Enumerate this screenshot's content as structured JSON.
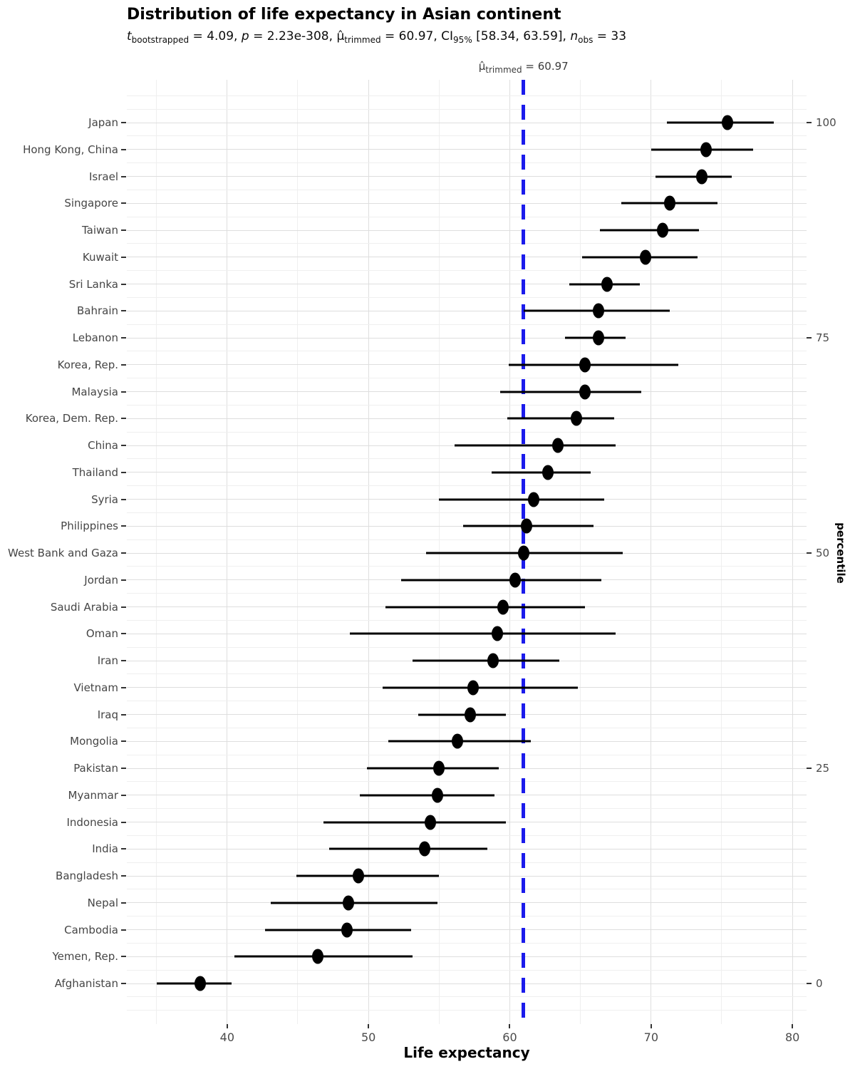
{
  "page": {
    "background": "#ffffff"
  },
  "chart_data": {
    "type": "scatter",
    "subtype": "dot_with_interval",
    "title": "Distribution of life expectancy in Asian continent",
    "subtitle_plain": "t bootstrapped = 4.09, p = 2.23e-308, μ̂ trimmed = 60.97, CI 95% [58.34, 63.59], n obs = 33",
    "subtitle_segments": [
      {
        "s": "it",
        "t": "t"
      },
      {
        "s": "sub",
        "t": "bootstrapped"
      },
      {
        "s": "",
        "t": " = 4.09, "
      },
      {
        "s": "it",
        "t": "p"
      },
      {
        "s": "",
        "t": " = 2.23e-308, "
      },
      {
        "s": "",
        "t": "μ̂"
      },
      {
        "s": "sub",
        "t": "trimmed"
      },
      {
        "s": "",
        "t": " = 60.97, CI"
      },
      {
        "s": "sub",
        "t": "95%"
      },
      {
        "s": "",
        "t": " [58.34, 63.59], "
      },
      {
        "s": "it",
        "t": "n"
      },
      {
        "s": "sub",
        "t": "obs"
      },
      {
        "s": "",
        "t": " = 33"
      }
    ],
    "annotation_plain": "μ̂ trimmed = 60.97",
    "annotation_segments": [
      {
        "s": "",
        "t": "μ̂"
      },
      {
        "s": "sub",
        "t": "trimmed"
      },
      {
        "s": "",
        "t": " = 60.97"
      }
    ],
    "ref_line": {
      "value": 60.97,
      "color": "#1b1bec",
      "style": "dashed"
    },
    "x_axis": {
      "label": "Life expectancy",
      "ticks": [
        40,
        50,
        60,
        70,
        80
      ],
      "minor_ticks": [
        35,
        45,
        55,
        65,
        75
      ],
      "domain": [
        32.9,
        81.0
      ]
    },
    "y2_axis": {
      "label": "percentile",
      "ticks": [
        {
          "label": "100",
          "row": 0
        },
        {
          "label": "75",
          "row": 8
        },
        {
          "label": "50",
          "row": 16
        },
        {
          "label": "25",
          "row": 24
        },
        {
          "label": "0",
          "row": 32
        }
      ]
    },
    "grid": true,
    "legend": false,
    "points": [
      {
        "country": "Japan",
        "value": 75.4,
        "ci_low": 71.1,
        "ci_high": 78.7
      },
      {
        "country": "Hong Kong, China",
        "value": 73.9,
        "ci_low": 70.0,
        "ci_high": 77.2
      },
      {
        "country": "Israel",
        "value": 73.6,
        "ci_low": 70.3,
        "ci_high": 75.7
      },
      {
        "country": "Singapore",
        "value": 71.3,
        "ci_low": 67.9,
        "ci_high": 74.7
      },
      {
        "country": "Taiwan",
        "value": 70.8,
        "ci_low": 66.4,
        "ci_high": 73.4
      },
      {
        "country": "Kuwait",
        "value": 69.6,
        "ci_low": 65.1,
        "ci_high": 73.3
      },
      {
        "country": "Sri Lanka",
        "value": 66.9,
        "ci_low": 64.2,
        "ci_high": 69.2
      },
      {
        "country": "Bahrain",
        "value": 66.3,
        "ci_low": 61.0,
        "ci_high": 71.3
      },
      {
        "country": "Lebanon",
        "value": 66.3,
        "ci_low": 63.9,
        "ci_high": 68.2
      },
      {
        "country": "Korea, Rep.",
        "value": 65.3,
        "ci_low": 59.9,
        "ci_high": 71.9
      },
      {
        "country": "Malaysia",
        "value": 65.3,
        "ci_low": 59.3,
        "ci_high": 69.3
      },
      {
        "country": "Korea, Dem. Rep.",
        "value": 64.7,
        "ci_low": 59.8,
        "ci_high": 67.4
      },
      {
        "country": "China",
        "value": 63.4,
        "ci_low": 56.1,
        "ci_high": 67.5
      },
      {
        "country": "Thailand",
        "value": 62.7,
        "ci_low": 58.7,
        "ci_high": 65.7
      },
      {
        "country": "Syria",
        "value": 61.7,
        "ci_low": 55.0,
        "ci_high": 66.7
      },
      {
        "country": "Philippines",
        "value": 61.2,
        "ci_low": 56.7,
        "ci_high": 65.9
      },
      {
        "country": "West Bank and Gaza",
        "value": 61.0,
        "ci_low": 54.1,
        "ci_high": 68.0
      },
      {
        "country": "Jordan",
        "value": 60.4,
        "ci_low": 52.3,
        "ci_high": 66.5
      },
      {
        "country": "Saudi Arabia",
        "value": 59.5,
        "ci_low": 51.2,
        "ci_high": 65.3
      },
      {
        "country": "Oman",
        "value": 59.1,
        "ci_low": 48.7,
        "ci_high": 67.5
      },
      {
        "country": "Iran",
        "value": 58.8,
        "ci_low": 53.1,
        "ci_high": 63.5
      },
      {
        "country": "Vietnam",
        "value": 57.4,
        "ci_low": 51.0,
        "ci_high": 64.8
      },
      {
        "country": "Iraq",
        "value": 57.2,
        "ci_low": 53.5,
        "ci_high": 59.7
      },
      {
        "country": "Mongolia",
        "value": 56.3,
        "ci_low": 51.4,
        "ci_high": 61.5
      },
      {
        "country": "Pakistan",
        "value": 55.0,
        "ci_low": 49.9,
        "ci_high": 59.2
      },
      {
        "country": "Myanmar",
        "value": 54.9,
        "ci_low": 49.4,
        "ci_high": 58.9
      },
      {
        "country": "Indonesia",
        "value": 54.4,
        "ci_low": 46.8,
        "ci_high": 59.7
      },
      {
        "country": "India",
        "value": 54.0,
        "ci_low": 47.2,
        "ci_high": 58.4
      },
      {
        "country": "Bangladesh",
        "value": 49.3,
        "ci_low": 44.9,
        "ci_high": 55.0
      },
      {
        "country": "Nepal",
        "value": 48.6,
        "ci_low": 43.1,
        "ci_high": 54.9
      },
      {
        "country": "Cambodia",
        "value": 48.5,
        "ci_low": 42.7,
        "ci_high": 53.0
      },
      {
        "country": "Yemen, Rep.",
        "value": 46.4,
        "ci_low": 40.5,
        "ci_high": 53.1
      },
      {
        "country": "Afghanistan",
        "value": 38.1,
        "ci_low": 35.0,
        "ci_high": 40.3
      }
    ]
  }
}
